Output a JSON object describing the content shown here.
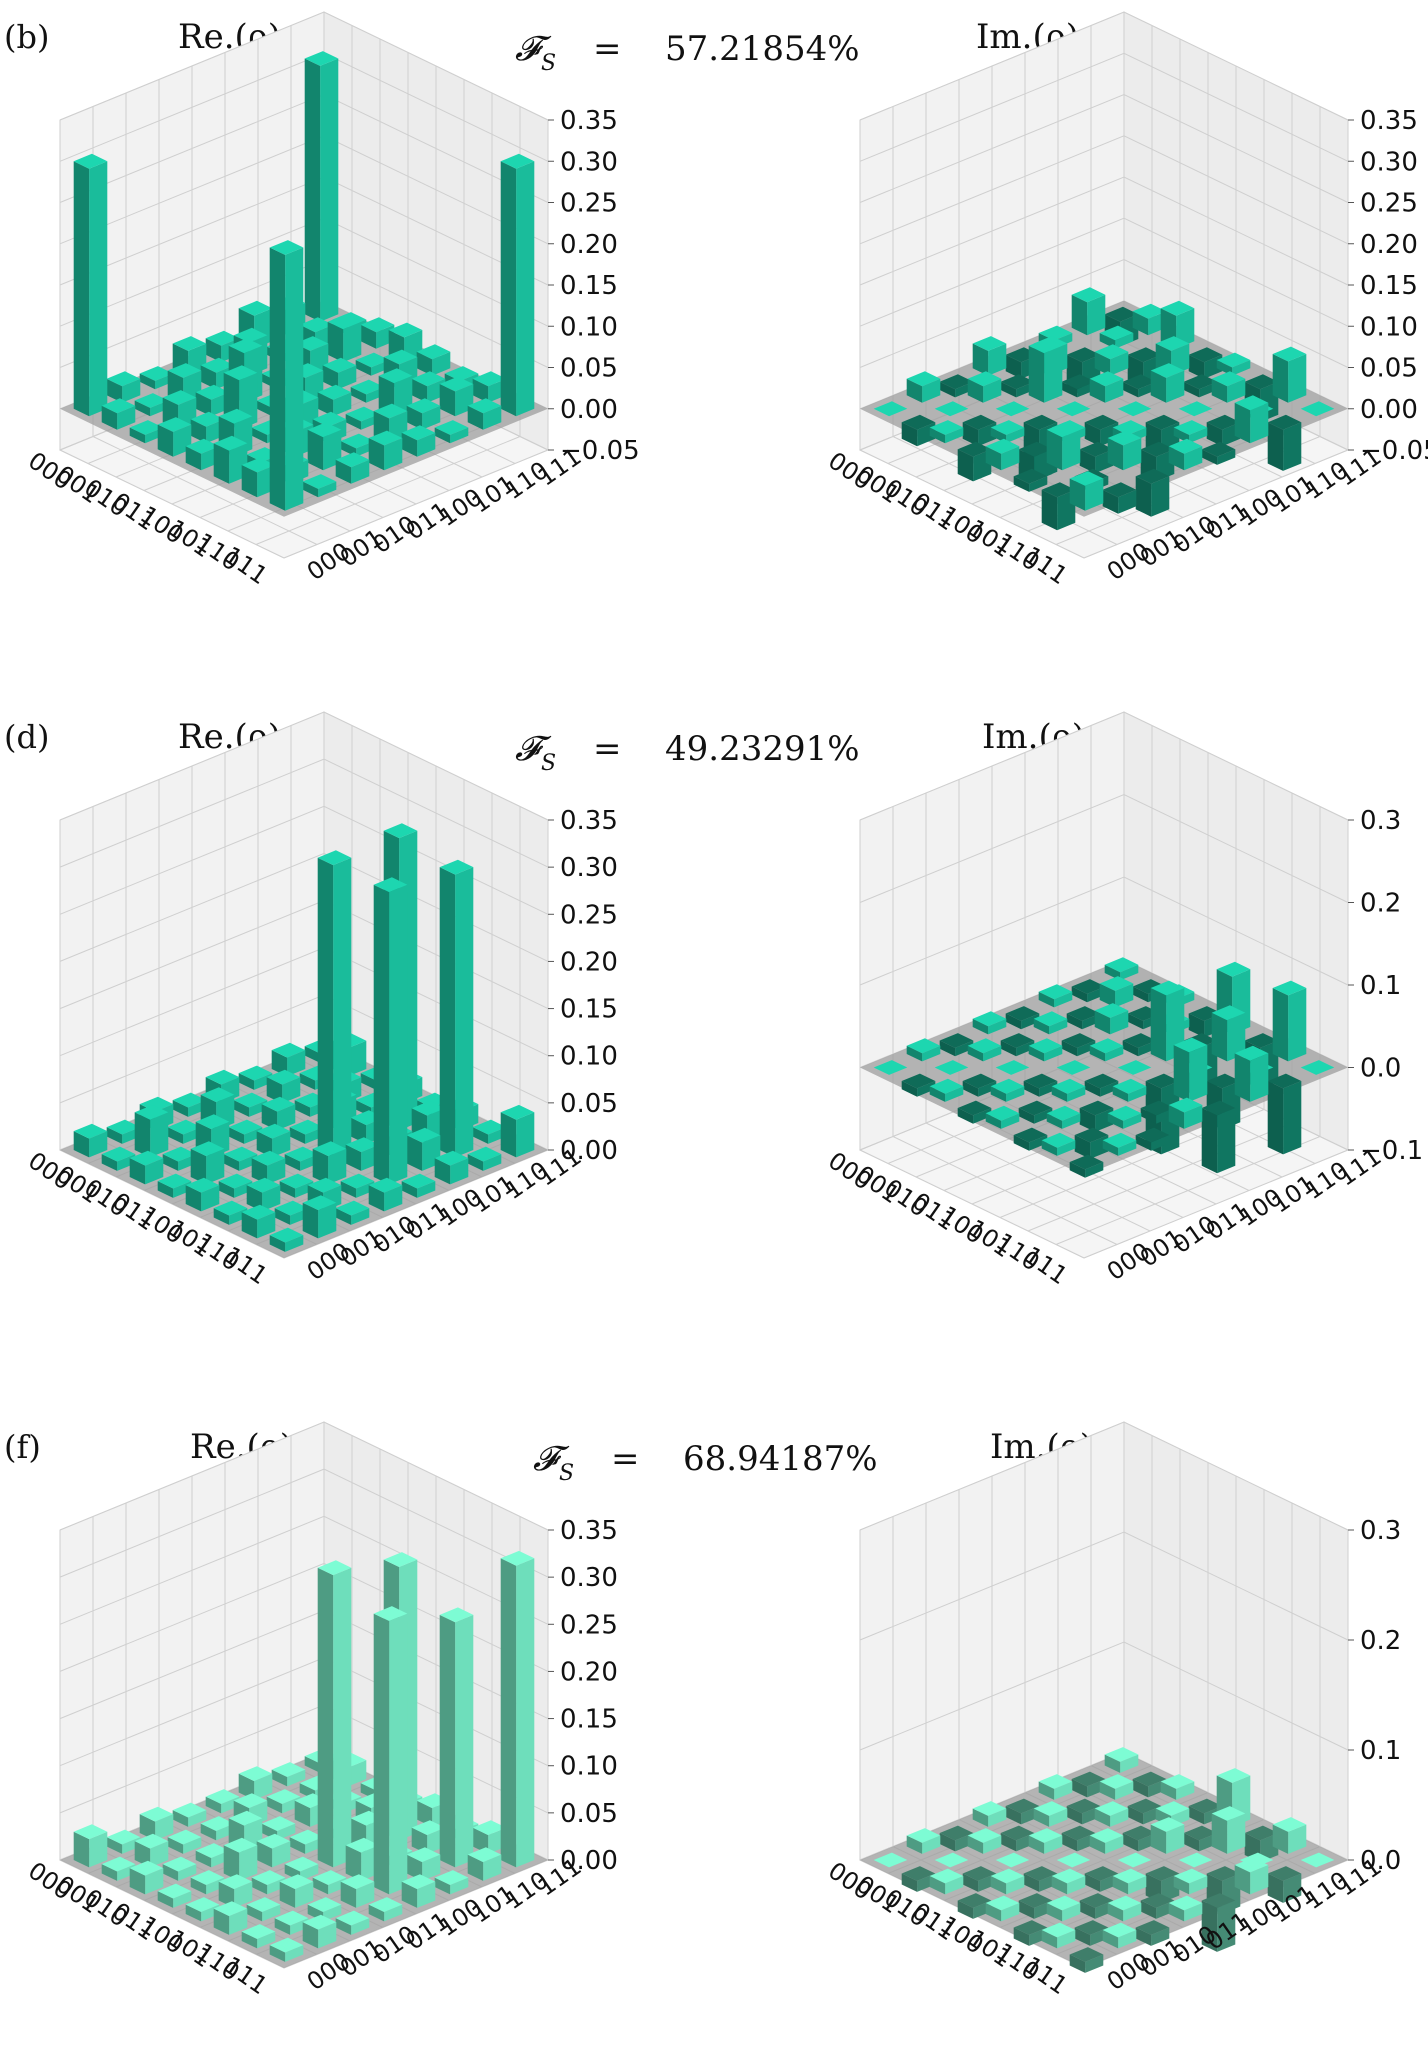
{
  "figure": {
    "rows": [
      {
        "label": "(b)",
        "fidelity_symbol": "𝓕",
        "fidelity_subscript": "S",
        "fidelity_eq": "=",
        "fidelity_value": "57.21854%",
        "color": "#1dd6b0",
        "real": {
          "title": "Re.(ρ)",
          "ticks": [
            "0.35",
            "0.30",
            "0.25",
            "0.20",
            "0.15",
            "0.10",
            "0.05",
            "0.00",
            "−0.05"
          ],
          "tick_values": [
            0.35,
            0.3,
            0.25,
            0.2,
            0.15,
            0.1,
            0.05,
            0.0,
            -0.05
          ]
        },
        "imag": {
          "title": "Im.(ρ)",
          "ticks": [
            "0.35",
            "0.30",
            "0.25",
            "0.20",
            "0.15",
            "0.10",
            "0.05",
            "0.00",
            "−0.05"
          ],
          "tick_values": [
            0.35,
            0.3,
            0.25,
            0.2,
            0.15,
            0.1,
            0.05,
            0.0,
            -0.05
          ]
        }
      },
      {
        "label": "(d)",
        "fidelity_symbol": "𝓕",
        "fidelity_subscript": "S",
        "fidelity_eq": "=",
        "fidelity_value": "49.23291%",
        "color": "#1dd6b0",
        "real": {
          "title": "Re.(ρ)",
          "ticks": [
            "0.35",
            "0.30",
            "0.25",
            "0.20",
            "0.15",
            "0.10",
            "0.05",
            "0.00"
          ],
          "tick_values": [
            0.35,
            0.3,
            0.25,
            0.2,
            0.15,
            0.1,
            0.05,
            0.0
          ]
        },
        "imag": {
          "title": "Im.(ρ)",
          "ticks": [
            "0.3",
            "0.2",
            "0.1",
            "0.0",
            "−0.1"
          ],
          "tick_values": [
            0.3,
            0.2,
            0.1,
            0.0,
            -0.1
          ]
        }
      },
      {
        "label": "(f)",
        "fidelity_symbol": "𝓕",
        "fidelity_subscript": "S",
        "fidelity_eq": "=",
        "fidelity_value": "68.94187%",
        "color": "#7dfcd4",
        "real": {
          "title": "Re.(ρ)",
          "ticks": [
            "0.35",
            "0.30",
            "0.25",
            "0.20",
            "0.15",
            "0.10",
            "0.05",
            "0.00"
          ],
          "tick_values": [
            0.35,
            0.3,
            0.25,
            0.2,
            0.15,
            0.1,
            0.05,
            0.0
          ]
        },
        "imag": {
          "title": "Im.(ρ)",
          "ticks": [
            "0.3",
            "0.2",
            "0.1",
            "0.0"
          ],
          "tick_values": [
            0.3,
            0.2,
            0.1,
            0.0
          ]
        }
      }
    ],
    "basis_labels": [
      "000",
      "001",
      "010",
      "011",
      "100",
      "101",
      "110",
      "111"
    ]
  },
  "chart_data": [
    {
      "type": "bar3d",
      "panel": "(b) Re",
      "title": "Re.(ρ)",
      "zlim": [
        -0.05,
        0.35
      ],
      "x": [
        "000",
        "001",
        "010",
        "011",
        "100",
        "101",
        "110",
        "111"
      ],
      "y": [
        "000",
        "001",
        "010",
        "011",
        "100",
        "101",
        "110",
        "111"
      ],
      "values": [
        [
          0.3,
          0.02,
          0.01,
          0.03,
          0.02,
          0.04,
          0.03,
          0.31
        ],
        [
          0.02,
          0.01,
          0.03,
          0.02,
          0.04,
          0.01,
          0.02,
          0.01
        ],
        [
          0.01,
          0.03,
          0.02,
          0.06,
          0.01,
          0.03,
          0.04,
          0.02
        ],
        [
          0.03,
          0.02,
          0.06,
          0.01,
          0.03,
          0.02,
          0.01,
          0.03
        ],
        [
          0.02,
          0.04,
          0.01,
          0.03,
          0.02,
          0.01,
          0.03,
          0.02
        ],
        [
          0.04,
          0.01,
          0.03,
          0.02,
          0.01,
          0.04,
          0.02,
          0.01
        ],
        [
          0.03,
          0.02,
          0.04,
          0.01,
          0.03,
          0.02,
          0.03,
          0.02
        ],
        [
          0.31,
          0.01,
          0.02,
          0.03,
          0.02,
          0.01,
          0.02,
          0.3
        ]
      ]
    },
    {
      "type": "bar3d",
      "panel": "(b) Im",
      "title": "Im.(ρ)",
      "zlim": [
        -0.05,
        0.35
      ],
      "x": [
        "000",
        "001",
        "010",
        "011",
        "100",
        "101",
        "110",
        "111"
      ],
      "y": [
        "000",
        "001",
        "010",
        "011",
        "100",
        "101",
        "110",
        "111"
      ],
      "values": [
        [
          0.0,
          0.02,
          -0.01,
          0.03,
          -0.02,
          0.01,
          0.04,
          -0.03
        ],
        [
          -0.02,
          0.0,
          0.02,
          -0.01,
          0.03,
          -0.04,
          0.01,
          0.02
        ],
        [
          0.01,
          -0.02,
          0.0,
          0.06,
          -0.01,
          0.02,
          -0.03,
          0.04
        ],
        [
          -0.03,
          0.01,
          -0.06,
          0.0,
          0.02,
          -0.01,
          0.03,
          -0.02
        ],
        [
          0.02,
          -0.03,
          0.01,
          -0.02,
          0.0,
          0.03,
          -0.01,
          0.01
        ],
        [
          -0.01,
          0.04,
          -0.02,
          0.01,
          -0.03,
          0.0,
          0.02,
          -0.04
        ],
        [
          -0.04,
          -0.01,
          0.03,
          -0.03,
          0.01,
          -0.02,
          0.0,
          0.05
        ],
        [
          0.03,
          -0.02,
          -0.04,
          0.02,
          -0.01,
          0.04,
          -0.05,
          0.0
        ]
      ]
    },
    {
      "type": "bar3d",
      "panel": "(d) Re",
      "title": "Re.(ρ)",
      "zlim": [
        0.0,
        0.35
      ],
      "x": [
        "000",
        "001",
        "010",
        "011",
        "100",
        "101",
        "110",
        "111"
      ],
      "y": [
        "000",
        "001",
        "010",
        "011",
        "100",
        "101",
        "110",
        "111"
      ],
      "values": [
        [
          0.02,
          0.01,
          0.02,
          0.01,
          0.02,
          0.01,
          0.02,
          0.01
        ],
        [
          0.01,
          0.04,
          0.01,
          0.03,
          0.01,
          0.02,
          0.01,
          0.03
        ],
        [
          0.02,
          0.01,
          0.03,
          0.01,
          0.02,
          0.01,
          0.02,
          0.01
        ],
        [
          0.01,
          0.03,
          0.01,
          0.02,
          0.01,
          0.03,
          0.01,
          0.02
        ],
        [
          0.02,
          0.01,
          0.02,
          0.01,
          0.31,
          0.02,
          0.31,
          0.01
        ],
        [
          0.01,
          0.02,
          0.01,
          0.03,
          0.02,
          0.02,
          0.03,
          0.02
        ],
        [
          0.02,
          0.01,
          0.02,
          0.01,
          0.31,
          0.03,
          0.3,
          0.01
        ],
        [
          0.01,
          0.03,
          0.01,
          0.02,
          0.01,
          0.02,
          0.01,
          0.04
        ]
      ]
    },
    {
      "type": "bar3d",
      "panel": "(d) Im",
      "title": "Im.(ρ)",
      "zlim": [
        -0.1,
        0.3
      ],
      "x": [
        "000",
        "001",
        "010",
        "011",
        "100",
        "101",
        "110",
        "111"
      ],
      "y": [
        "000",
        "001",
        "010",
        "011",
        "100",
        "101",
        "110",
        "111"
      ],
      "values": [
        [
          0.0,
          0.01,
          -0.01,
          0.01,
          -0.01,
          0.01,
          -0.01,
          0.01
        ],
        [
          -0.01,
          0.0,
          0.01,
          -0.01,
          0.01,
          -0.01,
          0.02,
          -0.01
        ],
        [
          0.01,
          -0.01,
          0.0,
          0.01,
          -0.01,
          0.02,
          -0.01,
          0.01
        ],
        [
          -0.01,
          0.01,
          -0.01,
          0.0,
          0.01,
          -0.01,
          0.01,
          -0.02
        ],
        [
          0.01,
          -0.01,
          0.01,
          -0.01,
          0.0,
          0.08,
          -0.06,
          0.07
        ],
        [
          -0.01,
          0.01,
          -0.02,
          0.01,
          -0.08,
          0.0,
          0.05,
          -0.05
        ],
        [
          0.01,
          -0.02,
          0.01,
          -0.01,
          0.06,
          -0.05,
          0.0,
          0.08
        ],
        [
          -0.01,
          0.01,
          -0.01,
          0.02,
          -0.07,
          0.05,
          -0.08,
          0.0
        ]
      ]
    },
    {
      "type": "bar3d",
      "panel": "(f) Re",
      "title": "Re.(ρ)",
      "zlim": [
        0.0,
        0.35
      ],
      "x": [
        "000",
        "001",
        "010",
        "011",
        "100",
        "101",
        "110",
        "111"
      ],
      "y": [
        "000",
        "001",
        "010",
        "011",
        "100",
        "101",
        "110",
        "111"
      ],
      "values": [
        [
          0.03,
          0.01,
          0.02,
          0.01,
          0.01,
          0.02,
          0.01,
          0.01
        ],
        [
          0.01,
          0.02,
          0.01,
          0.01,
          0.02,
          0.01,
          0.01,
          0.02
        ],
        [
          0.02,
          0.01,
          0.01,
          0.03,
          0.01,
          0.02,
          0.01,
          0.01
        ],
        [
          0.01,
          0.01,
          0.03,
          0.02,
          0.01,
          0.01,
          0.02,
          0.01
        ],
        [
          0.01,
          0.02,
          0.01,
          0.01,
          0.31,
          0.03,
          0.29,
          0.02
        ],
        [
          0.02,
          0.01,
          0.02,
          0.01,
          0.03,
          0.01,
          0.02,
          0.01
        ],
        [
          0.01,
          0.01,
          0.01,
          0.02,
          0.29,
          0.02,
          0.26,
          0.02
        ],
        [
          0.01,
          0.02,
          0.01,
          0.01,
          0.02,
          0.01,
          0.02,
          0.32
        ]
      ]
    },
    {
      "type": "bar3d",
      "panel": "(f) Im",
      "title": "Im.(ρ)",
      "zlim": [
        0.0,
        0.3
      ],
      "x": [
        "000",
        "001",
        "010",
        "011",
        "100",
        "101",
        "110",
        "111"
      ],
      "y": [
        "000",
        "001",
        "010",
        "011",
        "100",
        "101",
        "110",
        "111"
      ],
      "values": [
        [
          0.0,
          0.01,
          -0.01,
          0.01,
          -0.01,
          0.01,
          -0.01,
          0.01
        ],
        [
          -0.01,
          0.0,
          0.01,
          -0.01,
          0.01,
          -0.01,
          0.01,
          -0.01
        ],
        [
          0.01,
          -0.01,
          0.0,
          0.01,
          -0.01,
          0.01,
          -0.01,
          0.01
        ],
        [
          -0.01,
          0.01,
          -0.01,
          0.0,
          0.01,
          -0.01,
          0.01,
          -0.01
        ],
        [
          0.01,
          -0.01,
          0.01,
          -0.01,
          0.0,
          0.02,
          -0.01,
          0.04
        ],
        [
          -0.01,
          0.01,
          -0.01,
          0.01,
          -0.02,
          0.0,
          0.03,
          -0.02
        ],
        [
          0.01,
          -0.01,
          0.01,
          -0.01,
          0.01,
          -0.03,
          0.0,
          0.02
        ],
        [
          -0.01,
          0.01,
          -0.01,
          0.01,
          -0.04,
          0.02,
          -0.02,
          0.0
        ]
      ]
    }
  ]
}
